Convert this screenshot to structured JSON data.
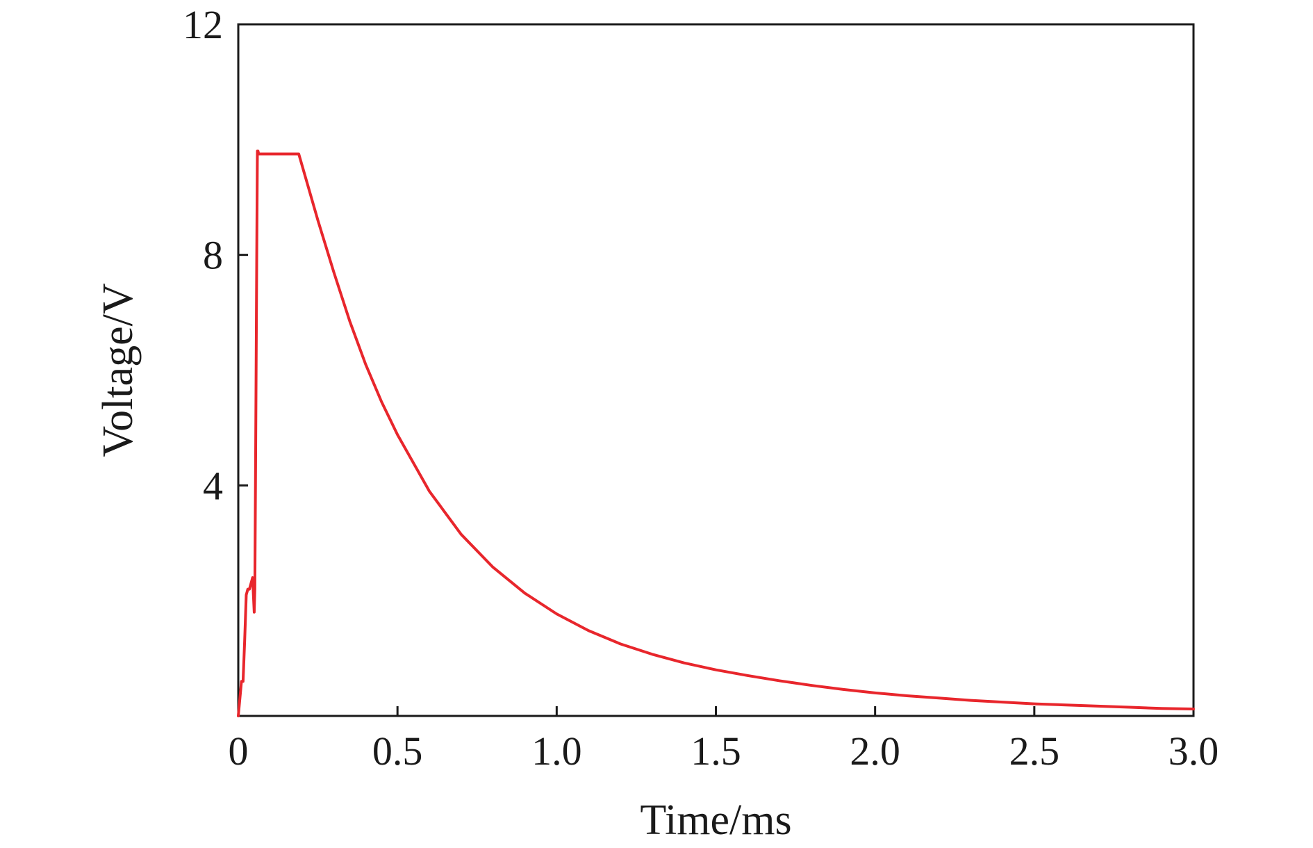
{
  "chart_data": {
    "type": "line",
    "title": "",
    "xlabel": "Time/ms",
    "ylabel": "Voltage/V",
    "xlim": [
      0,
      3.0
    ],
    "ylim": [
      0,
      12
    ],
    "x_ticks": [
      {
        "value": 0,
        "label": "0"
      },
      {
        "value": 0.5,
        "label": "0.5"
      },
      {
        "value": 1.0,
        "label": "1.0"
      },
      {
        "value": 1.5,
        "label": "1.5"
      },
      {
        "value": 2.0,
        "label": "2.0"
      },
      {
        "value": 2.5,
        "label": "2.5"
      },
      {
        "value": 3.0,
        "label": "3.0"
      }
    ],
    "y_ticks": [
      {
        "value": 4,
        "label": "4"
      },
      {
        "value": 8,
        "label": "8"
      },
      {
        "value": 12,
        "label": "12"
      }
    ],
    "grid": false,
    "legend": "none",
    "series": [
      {
        "color": "#e8262c",
        "x": [
          0,
          0.005,
          0.01,
          0.015,
          0.02,
          0.025,
          0.03,
          0.035,
          0.04,
          0.045,
          0.05,
          0.052,
          0.054,
          0.056,
          0.058,
          0.06,
          0.062,
          0.064,
          0.07,
          0.1,
          0.13,
          0.16,
          0.19,
          0.25,
          0.3,
          0.35,
          0.4,
          0.45,
          0.5,
          0.6,
          0.7,
          0.8,
          0.9,
          1.0,
          1.1,
          1.2,
          1.3,
          1.4,
          1.5,
          1.6,
          1.7,
          1.8,
          1.9,
          2.0,
          2.1,
          2.2,
          2.3,
          2.4,
          2.5,
          2.6,
          2.7,
          2.8,
          2.9,
          3.0
        ],
        "y": [
          0,
          0.3,
          0.6,
          0.6,
          1.3,
          2.1,
          2.2,
          2.2,
          2.3,
          2.4,
          1.8,
          2.2,
          4.0,
          6.0,
          8.0,
          9.8,
          9.8,
          9.75,
          9.75,
          9.75,
          9.75,
          9.75,
          9.75,
          8.6,
          7.7,
          6.85,
          6.1,
          5.45,
          4.88,
          3.9,
          3.15,
          2.58,
          2.13,
          1.77,
          1.48,
          1.25,
          1.07,
          0.92,
          0.8,
          0.7,
          0.61,
          0.53,
          0.46,
          0.4,
          0.35,
          0.31,
          0.27,
          0.24,
          0.21,
          0.19,
          0.17,
          0.15,
          0.13,
          0.12
        ]
      }
    ]
  }
}
